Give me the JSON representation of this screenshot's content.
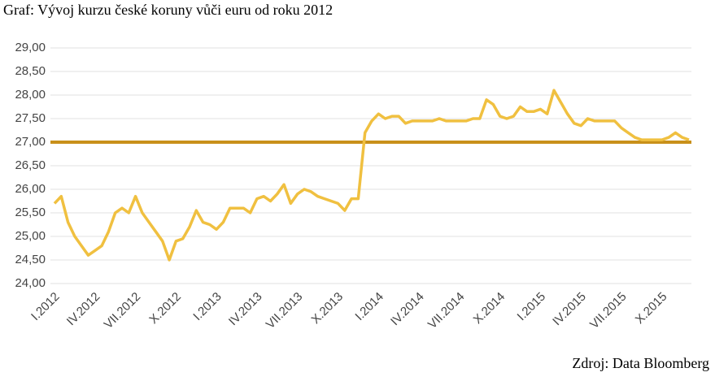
{
  "chart_data": {
    "type": "line",
    "title": "Graf: Vývoj kurzu české koruny vůči euru od roku 2012",
    "source": "Zdroj: Data Bloomberg",
    "categories": [
      "I.2012",
      null,
      null,
      null,
      null,
      null,
      "IV.2012",
      null,
      null,
      null,
      null,
      null,
      "VII.2012",
      null,
      null,
      null,
      null,
      null,
      "X.2012",
      null,
      null,
      null,
      null,
      null,
      "I.2013",
      null,
      null,
      null,
      null,
      null,
      "IV.2013",
      null,
      null,
      null,
      null,
      null,
      "VII.2013",
      null,
      null,
      null,
      null,
      null,
      "X.2013",
      null,
      null,
      null,
      null,
      null,
      "I.2014",
      null,
      null,
      null,
      null,
      null,
      "IV.2014",
      null,
      null,
      null,
      null,
      null,
      "VII.2014",
      null,
      null,
      null,
      null,
      null,
      "X.2014",
      null,
      null,
      null,
      null,
      null,
      "I.2015",
      null,
      null,
      null,
      null,
      null,
      "IV.2015",
      null,
      null,
      null,
      null,
      null,
      "VII.2015",
      null,
      null,
      null,
      null,
      null,
      "X.2015",
      null,
      null,
      null,
      null
    ],
    "series": [
      {
        "color": "#f0c040",
        "values": [
          25.7,
          25.85,
          25.3,
          25.0,
          24.8,
          24.6,
          24.7,
          24.8,
          25.1,
          25.5,
          25.6,
          25.5,
          25.85,
          25.5,
          25.3,
          25.1,
          24.9,
          24.5,
          24.9,
          24.95,
          25.2,
          25.55,
          25.3,
          25.25,
          25.15,
          25.3,
          25.6,
          25.6,
          25.6,
          25.5,
          25.8,
          25.85,
          25.75,
          25.9,
          26.1,
          25.7,
          25.9,
          26.0,
          25.95,
          25.85,
          25.8,
          25.75,
          25.7,
          25.55,
          25.8,
          25.8,
          27.2,
          27.45,
          27.6,
          27.5,
          27.55,
          27.55,
          27.4,
          27.45,
          27.45,
          27.45,
          27.45,
          27.5,
          27.45,
          27.45,
          27.45,
          27.45,
          27.5,
          27.5,
          27.9,
          27.8,
          27.55,
          27.5,
          27.55,
          27.75,
          27.65,
          27.65,
          27.7,
          27.6,
          28.1,
          27.85,
          27.6,
          27.4,
          27.35,
          27.5,
          27.45,
          27.45,
          27.45,
          27.45,
          27.3,
          27.2,
          27.1,
          27.05,
          27.05,
          27.05,
          27.05,
          27.1,
          27.2,
          27.1,
          27.05
        ]
      }
    ],
    "reference_line": {
      "value": 27,
      "color": "#c8901a"
    },
    "ylim": [
      24,
      29
    ],
    "yticks": [
      {
        "value": 24,
        "label": "24,00"
      },
      {
        "value": 24.5,
        "label": "24,50"
      },
      {
        "value": 25,
        "label": "25,00"
      },
      {
        "value": 25.5,
        "label": "25,50"
      },
      {
        "value": 26,
        "label": "26,00"
      },
      {
        "value": 26.5,
        "label": "26,50"
      },
      {
        "value": 27,
        "label": "27,00"
      },
      {
        "value": 27.5,
        "label": "27,50"
      },
      {
        "value": 28,
        "label": "28,00"
      },
      {
        "value": 28.5,
        "label": "28,50"
      },
      {
        "value": 29,
        "label": "29,00"
      }
    ],
    "grid": true
  }
}
